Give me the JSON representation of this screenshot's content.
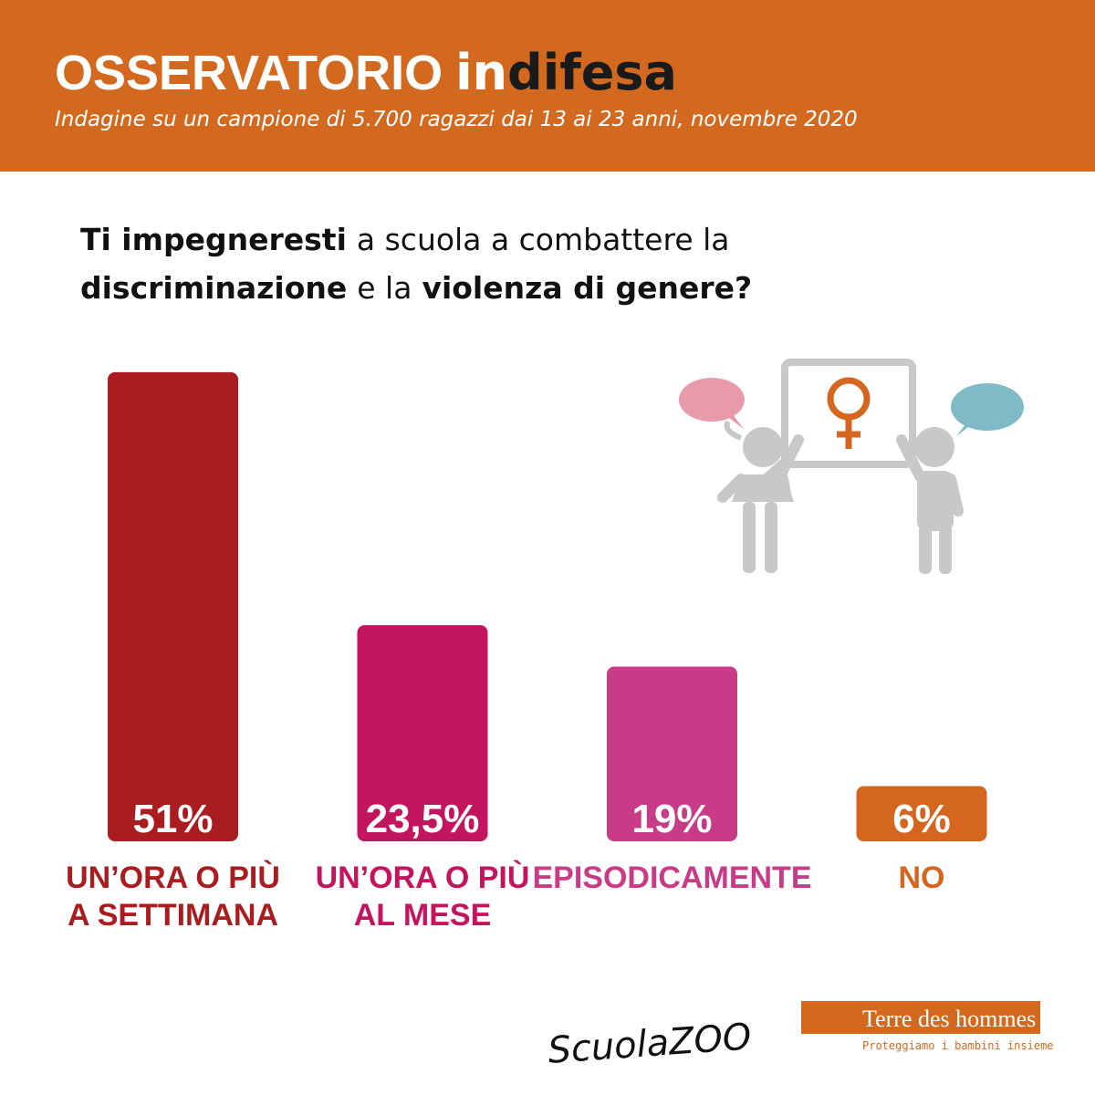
{
  "header": {
    "title": "OSSERVATORIO",
    "brand": [
      {
        "text": "in",
        "color": "#ffffff"
      },
      {
        "text": "difesa",
        "color": "#1a1a1a"
      }
    ],
    "subtitle": "Indagine su un campione di 5.700 ragazzi dai 13 ai 23 anni, novembre 2020"
  },
  "chart_data": {
    "type": "bar",
    "title": [
      [
        {
          "text": "Ti impegneresti",
          "bold": true
        },
        {
          "text": "a scuola a combattere la",
          "bold": false
        }
      ],
      [
        {
          "text": "discriminazione",
          "bold": true
        },
        {
          "text": "e la",
          "bold": false
        },
        {
          "text": "violenza di genere?",
          "bold": true
        }
      ]
    ],
    "categories": [
      [
        "UN’ORA O PIÙ",
        "A SETTIMANA"
      ],
      [
        "UN’ORA O PIÙ",
        "AL MESE"
      ],
      [
        "EPISODICAMENTE"
      ],
      [
        "NO"
      ]
    ],
    "values": [
      51,
      23.5,
      19,
      6
    ],
    "value_labels": [
      "51%",
      "23,5%",
      "19%",
      "6%"
    ],
    "colors": [
      "#a91c1f",
      "#c3145e",
      "#c83c87",
      "#d4661f"
    ]
  },
  "footer": {
    "partner1": "ScuolaZOO",
    "partner2": "Terre des hommes",
    "partner2_tagline": "Proteggiamo i bambini insieme"
  }
}
